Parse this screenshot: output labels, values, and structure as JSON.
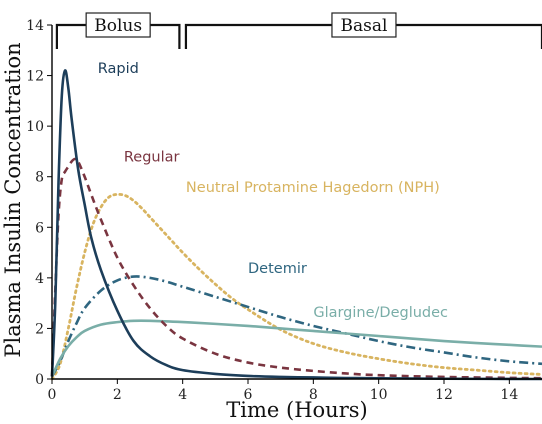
{
  "chart_data": {
    "type": "line",
    "title": "",
    "xlabel": "Time (Hours)",
    "ylabel": "Plasma Insulin Concentration",
    "xlim": [
      0,
      15
    ],
    "ylim": [
      0,
      14
    ],
    "xticks": [
      0,
      2,
      4,
      6,
      8,
      10,
      12,
      14
    ],
    "yticks": [
      0,
      2,
      4,
      6,
      8,
      10,
      12,
      14
    ],
    "grid": false,
    "legend": "none",
    "brackets": [
      {
        "label": "Bolus",
        "x_start": 0.15,
        "x_end": 3.9
      },
      {
        "label": "Basal",
        "x_start": 4.1,
        "x_end": 15
      }
    ],
    "series": [
      {
        "name": "Rapid",
        "color": "#1d3e5a",
        "style": "solid",
        "label_at": [
          1.4,
          12.1
        ],
        "x": [
          0,
          0.1,
          0.2,
          0.3,
          0.4,
          0.5,
          0.6,
          0.8,
          1.0,
          1.2,
          1.5,
          2.0,
          2.5,
          3.0,
          3.5,
          4.0,
          5.0,
          6.0,
          7.0,
          8.0,
          9.0,
          10.0,
          12.0,
          15.0
        ],
        "y": [
          0.1,
          3.0,
          7.8,
          11.2,
          12.2,
          11.5,
          10.3,
          8.3,
          6.9,
          5.6,
          4.3,
          2.7,
          1.5,
          0.9,
          0.55,
          0.35,
          0.2,
          0.12,
          0.08,
          0.06,
          0.04,
          0.03,
          0.01,
          0.0
        ]
      },
      {
        "name": "Regular",
        "color": "#7a3540",
        "style": "dashed",
        "label_at": [
          2.2,
          8.6
        ],
        "x": [
          0,
          0.1,
          0.2,
          0.3,
          0.4,
          0.5,
          0.6,
          0.7,
          0.8,
          1.0,
          1.2,
          1.5,
          2.0,
          2.5,
          3.0,
          3.5,
          4.0,
          5.0,
          6.0,
          7.0,
          8.0,
          9.0,
          10.0,
          12.0,
          15.0
        ],
        "y": [
          0.1,
          3.5,
          6.5,
          7.9,
          8.2,
          8.4,
          8.6,
          8.7,
          8.6,
          8.0,
          7.3,
          6.3,
          4.8,
          3.7,
          2.8,
          2.1,
          1.6,
          1.0,
          0.65,
          0.45,
          0.32,
          0.22,
          0.15,
          0.08,
          0.03
        ]
      },
      {
        "name": "Neutral Protamine Hagedorn (NPH)",
        "color": "#d8b460",
        "style": "dotted",
        "label_at": [
          4.1,
          7.4
        ],
        "x": [
          0,
          0.25,
          0.5,
          0.75,
          1.0,
          1.25,
          1.5,
          1.75,
          2.0,
          2.25,
          2.5,
          2.75,
          3.0,
          3.5,
          4.0,
          4.5,
          5.0,
          5.5,
          6.0,
          7.0,
          8.0,
          9.0,
          10.0,
          11.0,
          12.0,
          13.0,
          14.0,
          15.0
        ],
        "y": [
          0.0,
          0.6,
          2.0,
          3.6,
          5.0,
          6.1,
          6.8,
          7.2,
          7.3,
          7.25,
          7.05,
          6.75,
          6.4,
          5.7,
          5.0,
          4.35,
          3.75,
          3.2,
          2.75,
          1.95,
          1.4,
          1.05,
          0.8,
          0.6,
          0.45,
          0.35,
          0.25,
          0.18
        ]
      },
      {
        "name": "Detemir",
        "color": "#2f6680",
        "style": "dashdot",
        "label_at": [
          6.0,
          4.2
        ],
        "x": [
          0,
          0.25,
          0.5,
          0.75,
          1.0,
          1.5,
          2.0,
          2.5,
          3.0,
          3.5,
          4.0,
          5.0,
          6.0,
          7.0,
          8.0,
          9.0,
          10.0,
          11.0,
          12.0,
          13.0,
          14.0,
          15.0
        ],
        "y": [
          0.1,
          0.7,
          1.5,
          2.2,
          2.8,
          3.5,
          3.9,
          4.05,
          4.0,
          3.85,
          3.65,
          3.25,
          2.85,
          2.45,
          2.1,
          1.8,
          1.5,
          1.25,
          1.05,
          0.85,
          0.7,
          0.6
        ]
      },
      {
        "name": "Glargine/Degludec",
        "color": "#7aaea8",
        "style": "solid",
        "label_at": [
          8.0,
          2.45
        ],
        "x": [
          0,
          0.25,
          0.5,
          0.75,
          1.0,
          1.5,
          2.0,
          2.5,
          3.0,
          4.0,
          5.0,
          6.0,
          7.0,
          8.0,
          9.0,
          10.0,
          11.0,
          12.0,
          13.0,
          14.0,
          15.0
        ],
        "y": [
          0.1,
          0.8,
          1.3,
          1.65,
          1.9,
          2.15,
          2.25,
          2.3,
          2.3,
          2.25,
          2.18,
          2.1,
          2.0,
          1.9,
          1.8,
          1.7,
          1.6,
          1.5,
          1.42,
          1.35,
          1.28
        ]
      }
    ]
  }
}
